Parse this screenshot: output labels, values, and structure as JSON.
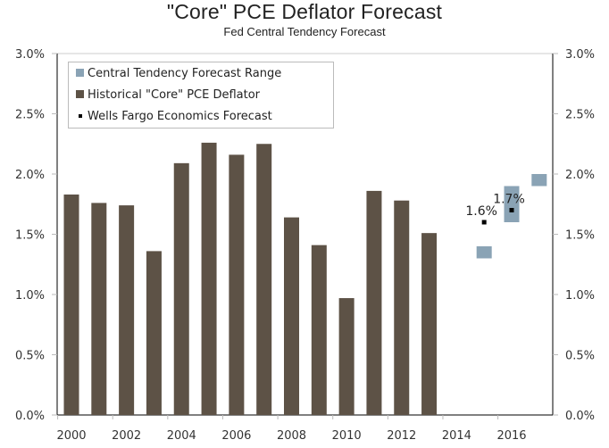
{
  "chart_data": {
    "type": "bar",
    "title": "\"Core\" PCE Deflator Forecast",
    "subtitle": "Fed Central Tendency Forecast",
    "xlabel": "",
    "ylabel": "",
    "ylim": [
      0,
      3.0
    ],
    "xlim": [
      2000,
      2017
    ],
    "y_ticks": [
      "0.0%",
      "0.5%",
      "1.0%",
      "1.5%",
      "2.0%",
      "2.5%",
      "3.0%"
    ],
    "y_tick_values": [
      0,
      0.5,
      1.0,
      1.5,
      2.0,
      2.5,
      3.0
    ],
    "x_ticks": [
      "2000",
      "2002",
      "2004",
      "2006",
      "2008",
      "2010",
      "2012",
      "2014",
      "2016"
    ],
    "legend_position": "top-left",
    "colors": {
      "historical": "#5d5246",
      "range": "#8aa3b5",
      "forecast": "#000000"
    },
    "series": [
      {
        "name": "Historical \"Core\" PCE Deflator",
        "type": "bar",
        "x": [
          2000,
          2001,
          2002,
          2003,
          2004,
          2005,
          2006,
          2007,
          2008,
          2009,
          2010,
          2011,
          2012,
          2013
        ],
        "values": [
          1.83,
          1.76,
          1.74,
          1.36,
          2.09,
          2.26,
          2.16,
          2.25,
          1.64,
          1.41,
          0.97,
          1.86,
          1.78,
          1.51
        ]
      },
      {
        "name": "Central Tendency Forecast Range",
        "type": "range",
        "x": [
          2015,
          2016,
          2017
        ],
        "low": [
          1.3,
          1.6,
          1.9
        ],
        "high": [
          1.4,
          1.9,
          2.0
        ]
      },
      {
        "name": "Wells Fargo Economics Forecast",
        "type": "point",
        "x": [
          2015,
          2016
        ],
        "values": [
          1.6,
          1.7
        ],
        "labels": [
          "1.6%",
          "1.7%"
        ]
      }
    ],
    "legend": [
      "Central Tendency Forecast Range",
      "Historical \"Core\" PCE Deflator",
      "Wells Fargo Economics Forecast"
    ]
  }
}
